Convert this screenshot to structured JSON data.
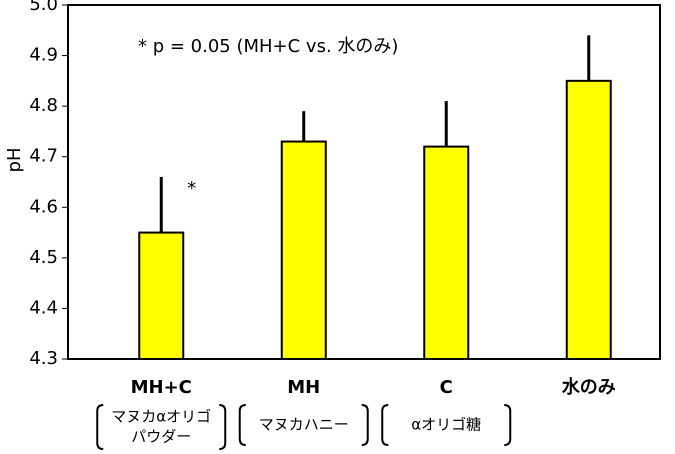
{
  "chart_data": {
    "type": "bar",
    "y_label": "pH",
    "annotation": "* p = 0.05 (MH+C vs. 水のみ)",
    "significance_marker": "*",
    "categories": [
      "MH+C",
      "MH",
      "C",
      "水のみ"
    ],
    "sub_labels": [
      [
        "マヌカαオリゴ",
        "パウダー"
      ],
      [
        "マヌカハニー"
      ],
      [
        "αオリゴ糖"
      ],
      null
    ],
    "values": [
      4.55,
      4.73,
      4.72,
      4.85
    ],
    "errors": [
      0.11,
      0.06,
      0.09,
      0.09
    ],
    "color": "#ffff00",
    "ylim": [
      4.3,
      5.0
    ],
    "yticks": [
      4.3,
      4.4,
      4.5,
      4.6,
      4.7,
      4.8,
      4.9,
      {
        "value": 5.0,
        "label": "5.0"
      }
    ],
    "grid": false
  }
}
